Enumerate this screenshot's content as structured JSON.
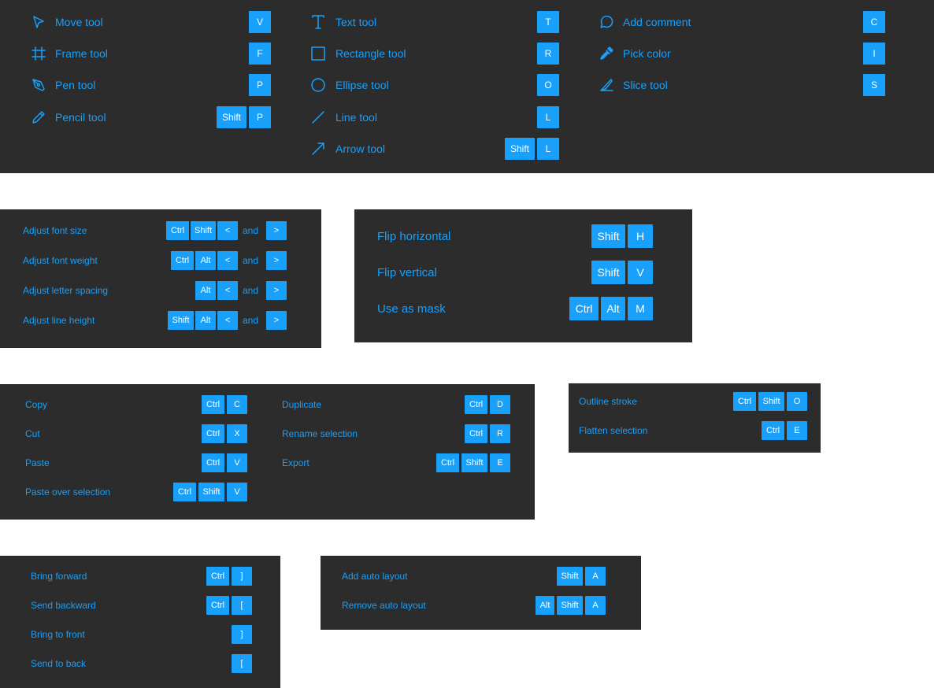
{
  "colors": {
    "panel_bg": "#2c2c2c",
    "accent": "#18a0fb",
    "key_text": "#ffffff",
    "page_bg": "#ffffff"
  },
  "tools": {
    "col1": [
      {
        "label": "Move tool",
        "icon": "cursor-arrow-icon",
        "keys": [
          "V"
        ]
      },
      {
        "label": "Frame tool",
        "icon": "frame-hash-icon",
        "keys": [
          "F"
        ]
      },
      {
        "label": "Pen tool",
        "icon": "pen-nib-icon",
        "keys": [
          "P"
        ]
      },
      {
        "label": "Pencil tool",
        "icon": "pencil-icon",
        "keys": [
          "Shift",
          "P"
        ]
      }
    ],
    "col2": [
      {
        "label": "Text tool",
        "icon": "text-t-icon",
        "keys": [
          "T"
        ]
      },
      {
        "label": "Rectangle tool",
        "icon": "rectangle-icon",
        "keys": [
          "R"
        ]
      },
      {
        "label": "Ellipse tool",
        "icon": "ellipse-icon",
        "keys": [
          "O"
        ]
      },
      {
        "label": "Line tool",
        "icon": "line-icon",
        "keys": [
          "L"
        ]
      },
      {
        "label": "Arrow tool",
        "icon": "arrow-icon",
        "keys": [
          "Shift",
          "L"
        ]
      }
    ],
    "col3": [
      {
        "label": "Add comment",
        "icon": "comment-bubble-icon",
        "keys": [
          "C"
        ]
      },
      {
        "label": "Pick color",
        "icon": "eyedropper-icon",
        "keys": [
          "I"
        ]
      },
      {
        "label": "Slice tool",
        "icon": "slice-knife-icon",
        "keys": [
          "S"
        ]
      }
    ]
  },
  "text_adjust": [
    {
      "label": "Adjust font size",
      "keys": [
        "Ctrl",
        "Shift",
        "<"
      ],
      "and": "and",
      "key2": ">"
    },
    {
      "label": "Adjust font weight",
      "keys": [
        "Ctrl",
        "Alt",
        "<"
      ],
      "and": "and",
      "key2": ">"
    },
    {
      "label": "Adjust letter spacing",
      "keys": [
        "Alt",
        "<"
      ],
      "and": "and",
      "key2": ">"
    },
    {
      "label": "Adjust line height",
      "keys": [
        "Shift",
        "Alt",
        "<"
      ],
      "and": "and",
      "key2": ">"
    }
  ],
  "transform": [
    {
      "label": "Flip horizontal",
      "keys": [
        "Shift",
        "H"
      ]
    },
    {
      "label": "Flip vertical",
      "keys": [
        "Shift",
        "V"
      ]
    },
    {
      "label": "Use as mask",
      "keys": [
        "Ctrl",
        "Alt",
        "M"
      ]
    }
  ],
  "clipboard": {
    "col1": [
      {
        "label": "Copy",
        "keys": [
          "Ctrl",
          "C"
        ]
      },
      {
        "label": "Cut",
        "keys": [
          "Ctrl",
          "X"
        ]
      },
      {
        "label": "Paste",
        "keys": [
          "Ctrl",
          "V"
        ]
      },
      {
        "label": "Paste over selection",
        "keys": [
          "Ctrl",
          "Shift",
          "V"
        ]
      }
    ],
    "col2": [
      {
        "label": "Duplicate",
        "keys": [
          "Ctrl",
          "D"
        ]
      },
      {
        "label": "Rename selection",
        "keys": [
          "Ctrl",
          "R"
        ]
      },
      {
        "label": "Export",
        "keys": [
          "Ctrl",
          "Shift",
          "E"
        ]
      }
    ]
  },
  "vector": [
    {
      "label": "Outline stroke",
      "keys": [
        "Ctrl",
        "Shift",
        "O"
      ]
    },
    {
      "label": "Flatten selection",
      "keys": [
        "Ctrl",
        "E"
      ]
    }
  ],
  "arrange": [
    {
      "label": "Bring forward",
      "keys": [
        "Ctrl",
        "]"
      ]
    },
    {
      "label": "Send backward",
      "keys": [
        "Ctrl",
        "["
      ]
    },
    {
      "label": "Bring to front",
      "keys": [
        "]"
      ]
    },
    {
      "label": "Send to back",
      "keys": [
        "["
      ]
    }
  ],
  "auto_layout": [
    {
      "label": "Add auto layout",
      "keys": [
        "Shift",
        "A"
      ]
    },
    {
      "label": "Remove auto layout",
      "keys": [
        "Alt",
        "Shift",
        "A"
      ]
    }
  ]
}
